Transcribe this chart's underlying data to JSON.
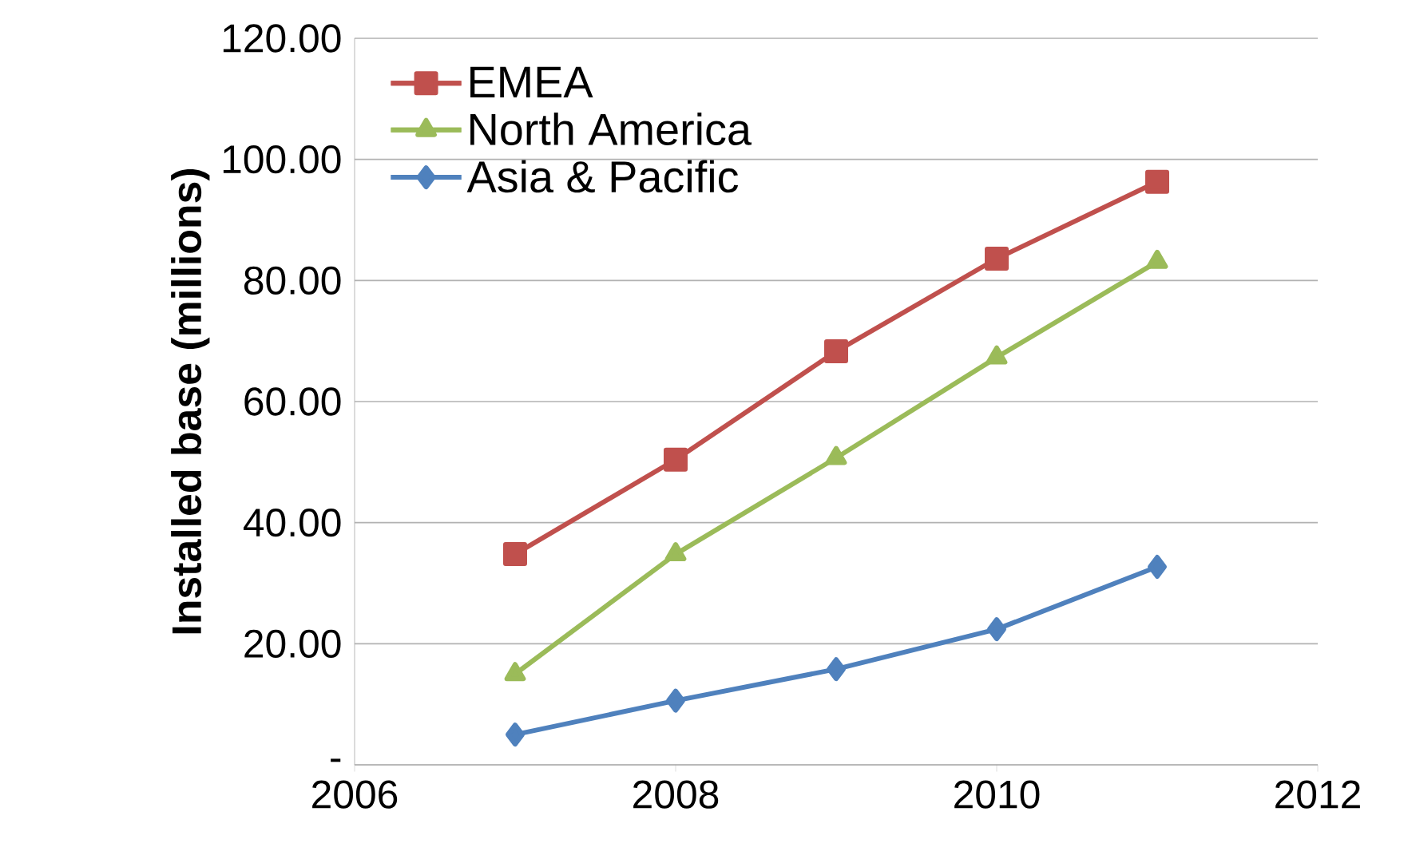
{
  "chart_data": {
    "type": "line",
    "ylabel": "Installed base (millions)",
    "x": [
      2007,
      2008,
      2009,
      2010,
      2011
    ],
    "series": [
      {
        "name": "EMEA",
        "color": "#c0504d",
        "marker": "square",
        "values": [
          34.8,
          50.4,
          68.3,
          83.6,
          96.3
        ]
      },
      {
        "name": "North America",
        "color": "#9bbb59",
        "marker": "triangle",
        "values": [
          15.0,
          34.8,
          50.7,
          67.3,
          83.1
        ]
      },
      {
        "name": "Asia & Pacific",
        "color": "#4f81bd",
        "marker": "diamond",
        "values": [
          5.0,
          10.6,
          15.8,
          22.4,
          32.7
        ]
      }
    ],
    "xlim": [
      2006,
      2012
    ],
    "xticks": [
      2006,
      2008,
      2010,
      2012
    ],
    "ylim": [
      0,
      120
    ],
    "yticks": [
      {
        "value": 0,
        "label": "-"
      },
      {
        "value": 20,
        "label": "20.00"
      },
      {
        "value": 40,
        "label": "40.00"
      },
      {
        "value": 60,
        "label": "60.00"
      },
      {
        "value": 80,
        "label": "80.00"
      },
      {
        "value": 100,
        "label": "100.00"
      },
      {
        "value": 120,
        "label": "120.00"
      }
    ],
    "grid": "y",
    "legend": "top left",
    "line_style": "solid"
  }
}
